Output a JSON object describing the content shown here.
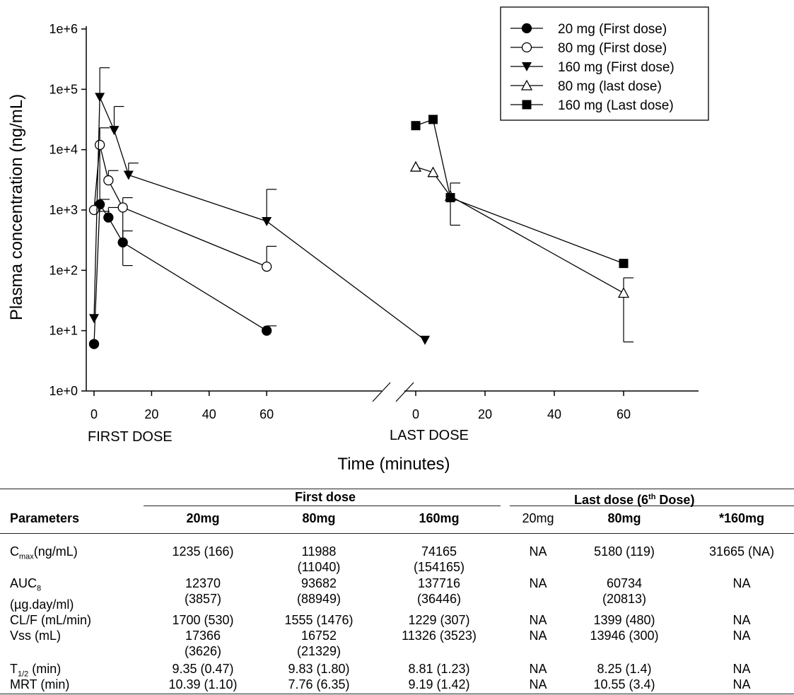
{
  "chart_data": {
    "type": "line",
    "y_scale": "log",
    "ylim": [
      1,
      1000000
    ],
    "ylabel": "Plasma concentration (ng/mL)",
    "xlabel": "Time (minutes)",
    "y_ticks": [
      "1e+0",
      "1e+1",
      "1e+2",
      "1e+3",
      "1e+4",
      "1e+5",
      "1e+6"
    ],
    "panels": [
      {
        "label": "FIRST DOSE",
        "x_ticks": [
          "0",
          "20",
          "40",
          "60"
        ],
        "xlim": [
          0,
          60
        ]
      },
      {
        "label": "LAST DOSE",
        "x_ticks": [
          "0",
          "20",
          "40",
          "60"
        ],
        "xlim": [
          0,
          60
        ]
      }
    ],
    "axis_break": true,
    "legend_position": "top-right",
    "series": [
      {
        "name": "20 mg (First dose)",
        "panel": "first",
        "marker": "filled-circle",
        "points": [
          {
            "x": 0,
            "y": 6
          },
          {
            "x": 2,
            "y": 1235
          },
          {
            "x": 5,
            "y": 750
          },
          {
            "x": 10,
            "y": 290
          },
          {
            "x": 60,
            "y": 10
          }
        ],
        "err_hi": [
          null,
          1500,
          1100,
          450,
          12
        ]
      },
      {
        "name": "80 mg (First dose)",
        "panel": "first",
        "marker": "open-circle",
        "points": [
          {
            "x": 0,
            "y": 1000
          },
          {
            "x": 2,
            "y": 11988
          },
          {
            "x": 5,
            "y": 3100
          },
          {
            "x": 10,
            "y": 1100
          },
          {
            "x": 60,
            "y": 115
          }
        ],
        "err_lo": [
          null,
          950,
          null,
          120,
          null
        ],
        "err_hi": [
          null,
          23000,
          4500,
          1600,
          250
        ]
      },
      {
        "name": "160 mg (First dose)",
        "panel": "first",
        "marker": "filled-triangle-down",
        "points": [
          {
            "x": 0,
            "y": 16
          },
          {
            "x": 2,
            "y": 74165
          },
          {
            "x": 7,
            "y": 21000
          },
          {
            "x": 12,
            "y": 3800
          },
          {
            "x": 60,
            "y": 650
          },
          {
            "x": 115,
            "y": 7
          }
        ],
        "err_lo": [
          null,
          null,
          null,
          null,
          null,
          null
        ],
        "err_hi": [
          null,
          228000,
          52000,
          6000,
          2200,
          null
        ]
      },
      {
        "name": "80 mg (last dose)",
        "panel": "last",
        "marker": "open-triangle-up",
        "points": [
          {
            "x": 0,
            "y": 5180
          },
          {
            "x": 5,
            "y": 4200
          },
          {
            "x": 10,
            "y": 1700
          },
          {
            "x": 60,
            "y": 42
          }
        ],
        "err_lo": [
          null,
          null,
          560,
          6.5
        ],
        "err_hi": [
          null,
          null,
          2800,
          75
        ]
      },
      {
        "name": "160 mg (Last dose)",
        "panel": "last",
        "marker": "filled-square",
        "points": [
          {
            "x": 0,
            "y": 25000
          },
          {
            "x": 5,
            "y": 31665
          },
          {
            "x": 10,
            "y": 1600
          },
          {
            "x": 60,
            "y": 130
          }
        ]
      }
    ]
  },
  "table": {
    "group_first": "First dose",
    "group_last": "Last dose (6",
    "group_last_sup": "th",
    "group_last_end": " Dose)",
    "param_header": "Parameters",
    "col_headers": [
      "20mg",
      "80mg",
      "160mg",
      "20mg",
      "80mg",
      "*160mg"
    ],
    "rows": [
      {
        "param": "C",
        "param_sub": "max",
        "param_rest": "(ng/mL)",
        "values": [
          [
            "1235 (166)"
          ],
          [
            "11988",
            "(11040)"
          ],
          [
            "74165",
            "(154165)"
          ],
          [
            "NA"
          ],
          [
            "5180 (119)"
          ],
          [
            "31665 (NA)"
          ]
        ]
      },
      {
        "param": "AUC",
        "param_sub": "8",
        "param_rest": "",
        "param_line2": "(µg.day/ml)",
        "values": [
          [
            "12370",
            "(3857)"
          ],
          [
            "93682",
            "(88949)"
          ],
          [
            "137716",
            "(36446)"
          ],
          [
            "NA"
          ],
          [
            "60734",
            "(20813)"
          ],
          [
            "NA"
          ]
        ]
      },
      {
        "param": "CL/F (mL/min)",
        "param_sub": "",
        "param_rest": "",
        "values": [
          [
            "1700 (530)"
          ],
          [
            "1555 (1476)"
          ],
          [
            "1229 (307)"
          ],
          [
            "NA"
          ],
          [
            "1399 (480)"
          ],
          [
            "NA"
          ]
        ]
      },
      {
        "param": "Vss (mL)",
        "param_sub": "",
        "param_rest": "",
        "values": [
          [
            "17366",
            "(3626)"
          ],
          [
            "16752",
            "(21329)"
          ],
          [
            "11326 (3523)"
          ],
          [
            "NA"
          ],
          [
            "13946 (300)"
          ],
          [
            "NA"
          ]
        ]
      },
      {
        "param": "T",
        "param_sub": "1/2",
        "param_rest": " (min)",
        "values": [
          [
            "9.35 (0.47)"
          ],
          [
            "9.83 (1.80)"
          ],
          [
            "8.81 (1.23)"
          ],
          [
            "NA"
          ],
          [
            "8.25 (1.4)"
          ],
          [
            "NA"
          ]
        ]
      },
      {
        "param": "MRT (min)",
        "param_sub": "",
        "param_rest": "",
        "values": [
          [
            "10.39 (1.10)"
          ],
          [
            "7.76 (6.35)"
          ],
          [
            "9.19 (1.42)"
          ],
          [
            "NA"
          ],
          [
            "10.55 (3.4)"
          ],
          [
            "NA"
          ]
        ]
      }
    ]
  }
}
